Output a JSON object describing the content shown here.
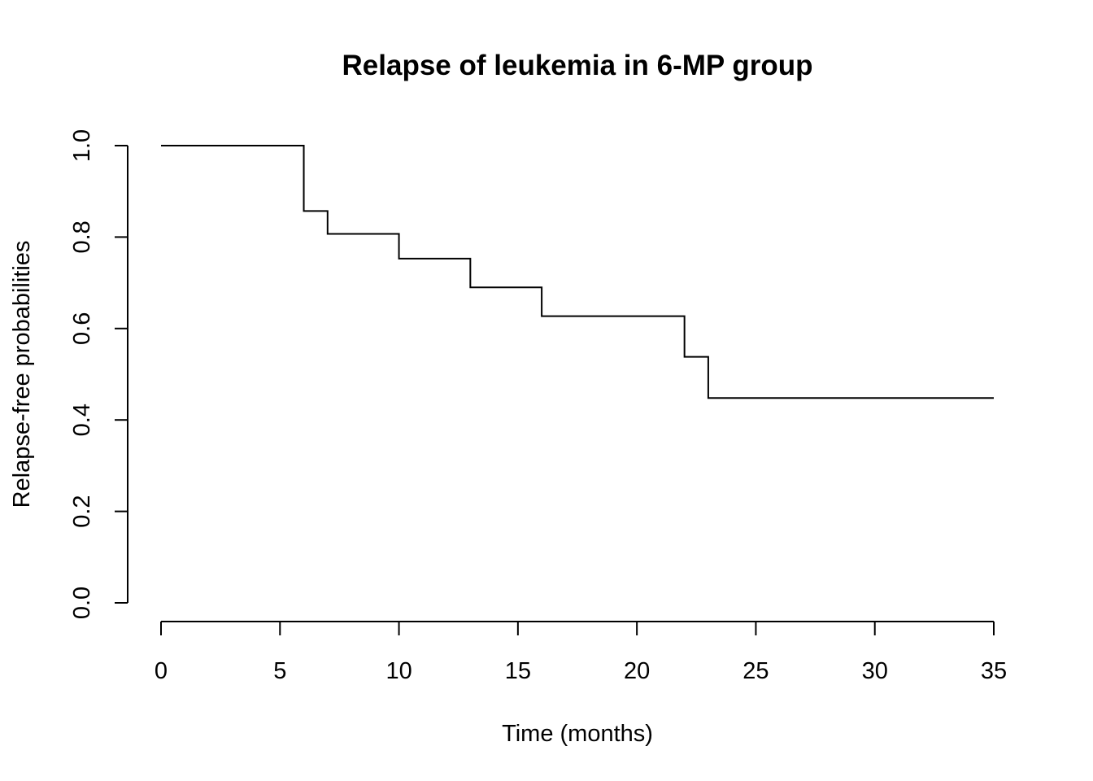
{
  "chart_data": {
    "type": "line",
    "step": true,
    "title": "Relapse of leukemia in 6-MP group",
    "xlabel": "Time (months)",
    "ylabel": "Relapse-free probabilities",
    "xlim": [
      0,
      35
    ],
    "ylim": [
      0,
      1
    ],
    "xticks": [
      0,
      5,
      10,
      15,
      20,
      25,
      30,
      35
    ],
    "yticks": [
      0.0,
      0.2,
      0.4,
      0.6,
      0.8,
      1.0
    ],
    "ytick_labels": [
      "0.0",
      "0.2",
      "0.4",
      "0.6",
      "0.8",
      "1.0"
    ],
    "grid": false,
    "series": [
      {
        "x": [
          0,
          6,
          7,
          10,
          13,
          16,
          22,
          23,
          35
        ],
        "y": [
          1.0,
          0.857,
          0.807,
          0.753,
          0.69,
          0.627,
          0.538,
          0.448,
          0.448
        ]
      }
    ]
  }
}
